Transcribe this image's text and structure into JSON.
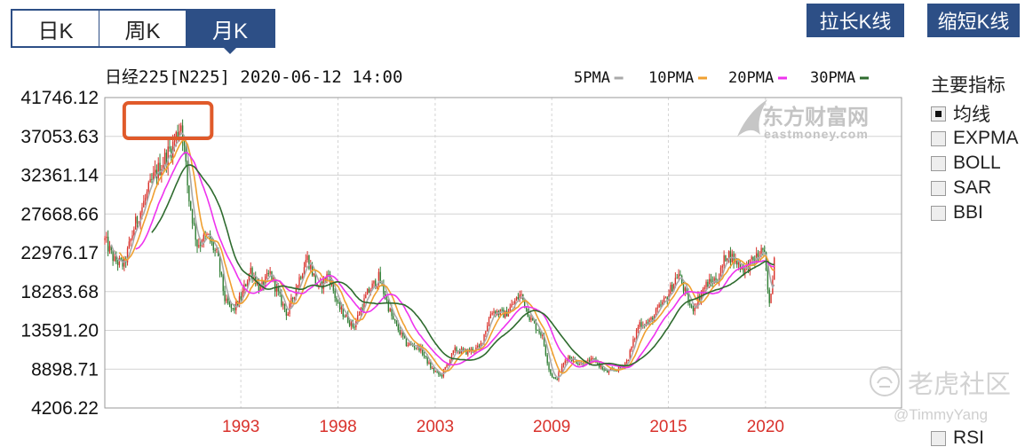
{
  "tabs": [
    {
      "label": "日K",
      "active": false
    },
    {
      "label": "周K",
      "active": false
    },
    {
      "label": "月K",
      "active": true
    }
  ],
  "buttons": {
    "lengthen": "拉长K线",
    "shorten": "缩短K线"
  },
  "indicators": {
    "title": "主要指标",
    "items": [
      {
        "label": "均线",
        "checked": true
      },
      {
        "label": "EXPMA",
        "checked": false
      },
      {
        "label": "BOLL",
        "checked": false
      },
      {
        "label": "SAR",
        "checked": false
      },
      {
        "label": "BBI",
        "checked": false
      }
    ],
    "partial_item": "RSI"
  },
  "watermarks": {
    "brand_cn": "东方财富网",
    "brand_en": "eastmoney.com",
    "tiger": "老虎社区",
    "user": "@TimmyYang"
  },
  "colors": {
    "up": "#d9322c",
    "down": "#2e7d32",
    "ma5": "#a9a9a9",
    "ma10": "#f0a030",
    "ma20": "#ee33ee",
    "ma30": "#2e6b2e",
    "accent": "#2d4f86",
    "highlight": "#e05a2a"
  },
  "chart_data": {
    "type": "candlestick",
    "title": "日经225[N225] 2020-06-12 14:00",
    "legend": [
      "5PMA",
      "10PMA",
      "20PMA",
      "30PMA"
    ],
    "legend_position": "top-right",
    "y_ticks": [
      "41746.12",
      "37053.63",
      "32361.14",
      "27668.66",
      "22976.17",
      "18283.68",
      "13591.20",
      "8898.71",
      "4206.22"
    ],
    "ylim": [
      4206.22,
      41746.12
    ],
    "x_tick_labels": [
      "1993",
      "1998",
      "2003",
      "2009",
      "2015",
      "2020"
    ],
    "x_tick_years": [
      1993,
      1998,
      2003,
      2009,
      2015,
      2020
    ],
    "x_range_years": [
      1986.0,
      2027.0
    ],
    "grid": true,
    "highlight_box_years": [
      1987.0,
      1991.5
    ],
    "close_anchors": [
      [
        1986.0,
        24500
      ],
      [
        1986.5,
        22000
      ],
      [
        1987.0,
        21500
      ],
      [
        1987.5,
        26000
      ],
      [
        1988.0,
        29000
      ],
      [
        1988.5,
        32000
      ],
      [
        1989.0,
        34000
      ],
      [
        1989.5,
        36000
      ],
      [
        1989.95,
        38900
      ],
      [
        1990.3,
        30000
      ],
      [
        1990.75,
        24000
      ],
      [
        1991.3,
        25000
      ],
      [
        1991.8,
        22500
      ],
      [
        1992.2,
        17000
      ],
      [
        1992.6,
        16000
      ],
      [
        1993.0,
        17500
      ],
      [
        1993.5,
        21000
      ],
      [
        1994.0,
        18500
      ],
      [
        1994.5,
        20500
      ],
      [
        1995.0,
        17500
      ],
      [
        1995.4,
        15500
      ],
      [
        1995.8,
        18500
      ],
      [
        1996.4,
        22500
      ],
      [
        1997.0,
        18500
      ],
      [
        1997.5,
        20500
      ],
      [
        1998.0,
        16500
      ],
      [
        1998.8,
        14000
      ],
      [
        1999.5,
        18000
      ],
      [
        2000.1,
        20000
      ],
      [
        2000.8,
        15000
      ],
      [
        2001.5,
        12000
      ],
      [
        2002.2,
        11500
      ],
      [
        2002.8,
        9000
      ],
      [
        2003.3,
        8000
      ],
      [
        2004.0,
        11200
      ],
      [
        2004.6,
        11000
      ],
      [
        2005.3,
        11500
      ],
      [
        2005.9,
        16000
      ],
      [
        2006.6,
        15500
      ],
      [
        2007.4,
        18000
      ],
      [
        2007.9,
        15000
      ],
      [
        2008.5,
        13000
      ],
      [
        2008.9,
        8500
      ],
      [
        2009.2,
        7500
      ],
      [
        2009.8,
        10500
      ],
      [
        2010.5,
        9500
      ],
      [
        2011.2,
        10000
      ],
      [
        2011.8,
        8500
      ],
      [
        2012.5,
        9000
      ],
      [
        2012.9,
        10000
      ],
      [
        2013.5,
        14500
      ],
      [
        2014.0,
        14500
      ],
      [
        2014.9,
        17500
      ],
      [
        2015.5,
        20500
      ],
      [
        2016.2,
        16000
      ],
      [
        2016.9,
        19000
      ],
      [
        2017.6,
        20000
      ],
      [
        2018.0,
        23000
      ],
      [
        2018.9,
        21000
      ],
      [
        2019.4,
        22000
      ],
      [
        2019.9,
        23500
      ],
      [
        2020.2,
        16500
      ],
      [
        2020.45,
        22300
      ]
    ],
    "months_count": 414,
    "ma_windows": [
      5,
      10,
      20,
      30
    ]
  }
}
